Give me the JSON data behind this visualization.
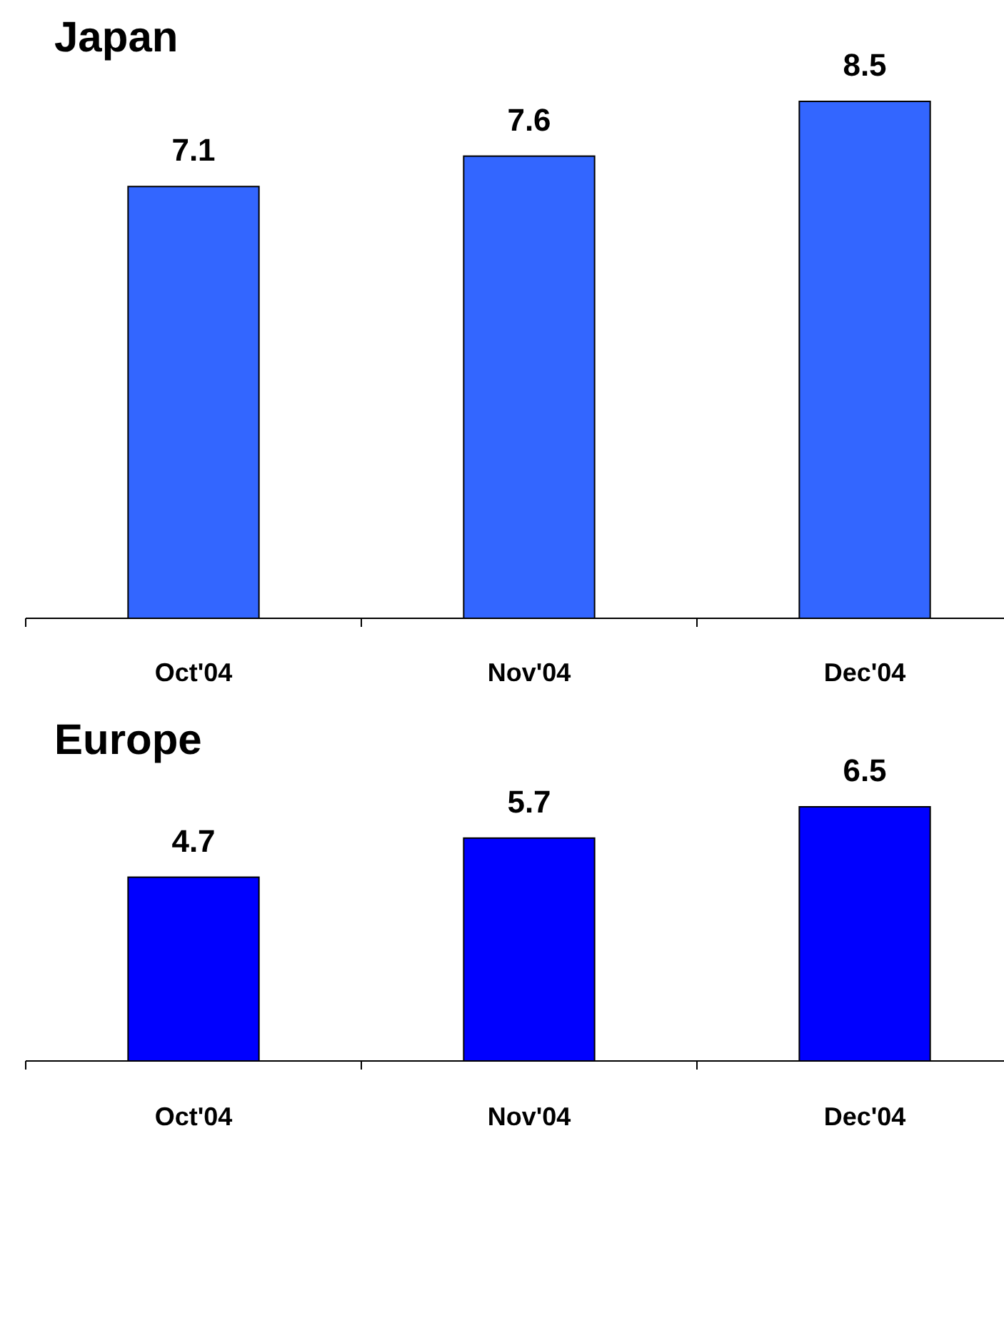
{
  "chart_data": [
    {
      "type": "bar",
      "title": "Japan",
      "categories": [
        "Oct'04",
        "Nov'04",
        "Dec'04"
      ],
      "values": [
        7.1,
        7.6,
        8.5
      ],
      "color": "#3366ff",
      "data_labels": true
    },
    {
      "type": "bar",
      "title": "Europe",
      "categories": [
        "Oct'04",
        "Nov'04",
        "Dec'04"
      ],
      "values": [
        4.7,
        5.7,
        6.5
      ],
      "color": "#0000ff",
      "data_labels": true
    }
  ]
}
